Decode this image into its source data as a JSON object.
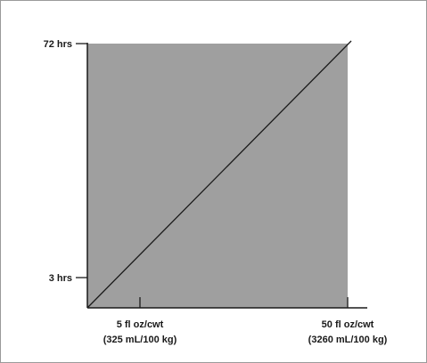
{
  "chart_data": {
    "type": "area",
    "title": "",
    "xlabel": "",
    "ylabel": "",
    "y_ticks": [
      {
        "value": 3,
        "label": "3 hrs"
      },
      {
        "value": 72,
        "label": "72 hrs"
      }
    ],
    "x_ticks": [
      {
        "value": 5,
        "label": "5 fl oz/cwt",
        "sublabel": "(325 mL/100 kg)"
      },
      {
        "value": 50,
        "label": "50 fl oz/cwt",
        "sublabel": "(3260 mL/100 kg)"
      }
    ],
    "series": [
      {
        "x": [
          0,
          50
        ],
        "y": [
          0,
          72
        ]
      }
    ],
    "shaded_region": {
      "x": [
        0,
        50
      ],
      "y": [
        0,
        72
      ]
    },
    "xlim": [
      0,
      50
    ],
    "ylim": [
      0,
      72
    ],
    "grid": false,
    "legend": "none",
    "colors": {
      "fill": "#9f9f9f",
      "line": "#1a1a1a",
      "axis": "#1a1a1a",
      "frame": "#9a9a9a"
    }
  }
}
